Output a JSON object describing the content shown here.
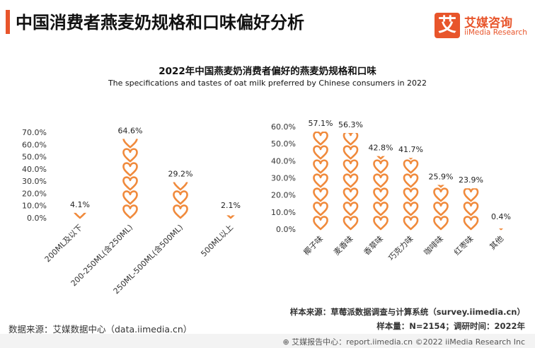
{
  "header": {
    "title": "中国消费者燕麦奶规格和口味偏好分析"
  },
  "logo": {
    "mark": "艾",
    "name": "艾媒咨询",
    "sub": "iiMedia Research"
  },
  "chart_title": "2022年中国燕麦奶消费者偏好的燕麦奶规格和口味",
  "chart_subtitle": "The specifications and tastes of oat milk preferred by Chinese consumers in 2022",
  "chart_data": [
    {
      "type": "bar",
      "categories": [
        "200ML及以下",
        "200-250ML(含250ML)",
        "250ML-500ML(含500ML)",
        "500ML以上"
      ],
      "values": [
        4.1,
        64.6,
        29.2,
        2.1
      ],
      "value_labels": [
        "4.1%",
        "64.6%",
        "29.2%",
        "2.1%"
      ],
      "yticks": [
        "0.0%",
        "10.0%",
        "20.0%",
        "30.0%",
        "40.0%",
        "50.0%",
        "60.0%",
        "70.0%"
      ],
      "ylim": [
        0,
        70
      ],
      "marker": "heart-icon",
      "color": "#f08a3c"
    },
    {
      "type": "bar",
      "categories": [
        "椰子味",
        "麦香味",
        "香草味",
        "巧克力味",
        "咖啡味",
        "红枣味",
        "其他"
      ],
      "values": [
        57.1,
        56.3,
        42.8,
        41.7,
        25.9,
        23.9,
        0.4
      ],
      "value_labels": [
        "57.1%",
        "56.3%",
        "42.8%",
        "41.7%",
        "25.9%",
        "23.9%",
        "0.4%"
      ],
      "yticks": [
        "0.0%",
        "10.0%",
        "20.0%",
        "30.0%",
        "40.0%",
        "50.0%",
        "60.0%"
      ],
      "ylim": [
        0,
        60
      ],
      "marker": "heart-icon",
      "color": "#f08a3c"
    }
  ],
  "notes": {
    "sample_source": "样本来源：草莓派数据调查与计算系统（survey.iimedia.cn）",
    "sample_size": "样本量：N=2154；调研时间：2022年",
    "data_source": "数据来源：艾媒数据中心（data.iimedia.cn）"
  },
  "footer": {
    "text": "⊕ 艾媒报告中心：report.iimedia.cn  ©2022  iiMedia Research Inc"
  }
}
